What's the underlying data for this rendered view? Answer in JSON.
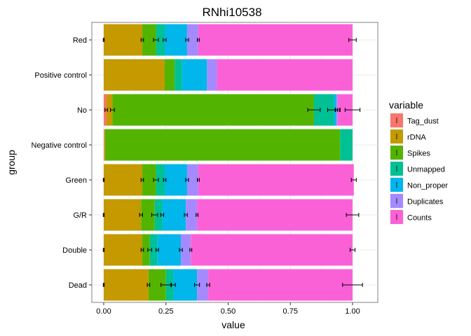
{
  "chart_data": {
    "type": "bar",
    "orientation": "horizontal",
    "stacked": true,
    "title": "RNhi10538",
    "xlabel": "value",
    "ylabel": "group",
    "xlim": [
      0,
      1
    ],
    "xticks": [
      "0.00",
      "0.25",
      "0.50",
      "0.75",
      "1.00"
    ],
    "grid": true,
    "legend_title": "variable",
    "legend_position": "right",
    "categories": [
      "Red",
      "Positive control",
      "No",
      "Negative control",
      "Green",
      "G/R",
      "Double",
      "Dead"
    ],
    "series": [
      {
        "name": "Tag_dust",
        "color": "#F8766D",
        "values": [
          0.0,
          0.0,
          0.01,
          0.003,
          0.0,
          0.0,
          0.0,
          0.0
        ],
        "errors": [
          0.002,
          null,
          0.005,
          null,
          0.002,
          0.002,
          0.002,
          0.002
        ]
      },
      {
        "name": "rDNA",
        "color": "#C49A00",
        "values": [
          0.155,
          0.245,
          0.025,
          0.002,
          0.155,
          0.15,
          0.155,
          0.18
        ],
        "errors": [
          0.005,
          null,
          0.008,
          null,
          0.005,
          0.006,
          0.005,
          0.005
        ]
      },
      {
        "name": "Spikes",
        "color": "#53B400",
        "values": [
          0.055,
          0.04,
          0.81,
          0.945,
          0.055,
          0.055,
          0.03,
          0.07
        ],
        "errors": [
          0.01,
          null,
          0.025,
          null,
          0.01,
          0.012,
          0.008,
          0.02
        ]
      },
      {
        "name": "Unmapped",
        "color": "#00C094",
        "values": [
          0.035,
          0.03,
          0.08,
          0.05,
          0.035,
          0.03,
          0.03,
          0.03
        ],
        "errors": [
          0.006,
          null,
          0.025,
          null,
          0.005,
          0.006,
          0.005,
          0.008
        ]
      },
      {
        "name": "Non_proper",
        "color": "#00B6EB",
        "values": [
          0.09,
          0.1,
          0.01,
          0.0,
          0.09,
          0.095,
          0.095,
          0.095
        ],
        "errors": [
          0.006,
          null,
          0.005,
          null,
          0.006,
          0.006,
          0.006,
          0.01
        ]
      },
      {
        "name": "Duplicates",
        "color": "#A58AFF",
        "values": [
          0.045,
          0.04,
          0.005,
          0.0,
          0.045,
          0.045,
          0.04,
          0.045
        ],
        "errors": [
          0.004,
          null,
          0.008,
          null,
          0.004,
          0.004,
          0.004,
          0.006
        ]
      },
      {
        "name": "Counts",
        "color": "#FB61D7",
        "values": [
          0.62,
          0.545,
          0.06,
          0.0,
          0.625,
          0.625,
          0.65,
          0.58
        ],
        "errors": [
          0.015,
          null,
          0.03,
          null,
          0.01,
          0.025,
          0.01,
          0.04
        ]
      }
    ]
  }
}
